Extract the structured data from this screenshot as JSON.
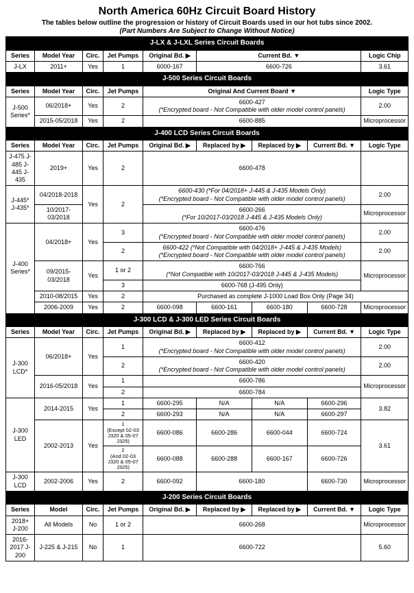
{
  "page": {
    "title": "North America 60Hz Circuit Board History",
    "subtitle1": "The tables below outline the progression or history of Circuit Boards used in our hot tubs since 2002.",
    "subtitle2": "(Part Numbers Are Subject to Change Without Notice)"
  },
  "headers": {
    "series": "Series",
    "model_year": "Model Year",
    "model": "Model",
    "circ": "Circ.",
    "jet_pumps": "Jet Pumps",
    "original_bd": "Original Bd. ▶",
    "current_bd": "Current Bd. ▼",
    "original_and_current": "Original And Current Board ▼",
    "replaced_by": "Replaced by ▶",
    "logic_chip": "Logic Chip",
    "logic_type": "Logic Type"
  },
  "sections": {
    "jlx": "J-LX & J-LXL Series Circuit Boards",
    "j500": "J-500 Series Circuit Boards",
    "j400": "J-400 LCD Series Circuit Boards",
    "j300": "J-300 LCD & J-300 LED Series Circuit Boards",
    "j200": "J-200 Series Circuit Boards"
  },
  "jlx_row": {
    "series": "J-LX",
    "year": "2011+",
    "circ": "Yes",
    "pumps": "1",
    "orig": "6000-167",
    "curr": "6600-726",
    "logic": "3.61"
  },
  "j500": {
    "series": "J-500 Series*",
    "r1_year": "06/2018+",
    "r1_circ": "Yes",
    "r1_pumps": "2",
    "r1_board": "6600-427",
    "r1_logic": "2.00",
    "r2_year": "2015-05/2018",
    "r2_circ": "Yes",
    "r2_pumps": "2",
    "r2_board": "6600-885",
    "r2_logic": "Microprocessor"
  },
  "encrypted_note": "(*Encrypted board - Not Compatible with older model control panels)",
  "j400": {
    "series1": "J-475 J-485 J-445 J-435",
    "r1_year": "2019+",
    "yes": "Yes",
    "p2": "2",
    "r1_board": "6600-478",
    "series2": "J-445* J-435*",
    "r2a_year": "04/2018-2018",
    "r2a_board": "6600-430 (*For 04/2018+ J-445 & J-435 Models Only)",
    "r2a_logic": "2.00",
    "r2b_year": "10/2017-03/2018",
    "r2b_board": "6600-266",
    "r2b_note": "(*For 10/2017-03/2018 J-445 & J-435 Models Only)",
    "r2b_logic": "Microprocessor",
    "series3": "J-400 Series*",
    "r3a_year": "04/2018+",
    "p3": "3",
    "r3a1_board": "6600-476",
    "r3a1_logic": "2.00",
    "r3a2_board": "6600-422 (*Not Compatible with 04/2018+ J-445 & J-435 Models)",
    "r3a2_logic": "2.00",
    "r3b_year": "09/2015-03/2018",
    "p1or2": "1 or 2",
    "r3b1_board": "6600-766",
    "r3b1_note": "(*Not Compatible with 10/2017-03/2018 J-445 & J-435 Models)",
    "r3b1_logic": "Microprocessor",
    "r3b2_board": "6600-768 (J-495 Only)",
    "r3c_year": "2010-08/2015",
    "r3c_note": "Purchased as complete J-1000 Load Box Only (Page 34)",
    "r3d_year": "2006-2009",
    "r3d_orig": "6600-098",
    "r3d_rep1": "6600-161",
    "r3d_rep2": "6600-180",
    "r3d_curr": "6600-728",
    "r3d_logic": "Microprocessor"
  },
  "j300": {
    "s_lcd": "J-300 LCD*",
    "s_led": "J-300 LED",
    "s_lcd2": "J-300 LCD",
    "yes": "Yes",
    "p1": "1",
    "p2": "2",
    "r1_year": "06/2018+",
    "r1a_board": "6600-412",
    "r1a_logic": "2.00",
    "r1b_board": "6600-420",
    "r1b_logic": "2.00",
    "r2_year": "2016-05/2018",
    "r2a_board": "6600-786",
    "r2_logic": "Microprocessor",
    "r2b_board": "6600-784",
    "r3_year": "2014-2015",
    "r3a_orig": "6600-295",
    "r3a_r1": "N/A",
    "r3a_r2": "N/A",
    "r3a_curr": "6600-296",
    "r3b_orig": "6600-293",
    "r3b_r1": "N/A",
    "r3b_r2": "N/A",
    "r3b_curr": "6600-297",
    "r3_logic": "3.82",
    "r4_year": "2002-2013",
    "r4a_pump": "1\n(Except 02-03 J320 & 05-07 J325)",
    "r4a_orig": "6600-086",
    "r4a_r1": "6600-286",
    "r4a_r2": "6600-044",
    "r4a_curr": "6600-724",
    "r4_logic": "3.61",
    "r4b_pump": "2\n(And 02-03 J320 & 05-07 J325)",
    "r4b_orig": "6600-088",
    "r4b_r1": "6600-288",
    "r4b_r2": "6600-167",
    "r4b_curr": "6600-726",
    "r5_year": "2002-2006",
    "r5_orig": "6600-092",
    "r5_r1": "6600-180",
    "r5_curr": "6600-730",
    "r5_logic": "Microprocessor"
  },
  "j200": {
    "s1": "2018+ J-200",
    "s1_model": "All Models",
    "no": "No",
    "p1or2": "1 or 2",
    "p1": "1",
    "s1_board": "6600-268",
    "s1_logic": "Microprocessor",
    "s2": "2016-2017 J-200",
    "s2_model": "J-225 & J-215",
    "s2_board": "6600-722",
    "s2_logic": "5.60"
  }
}
